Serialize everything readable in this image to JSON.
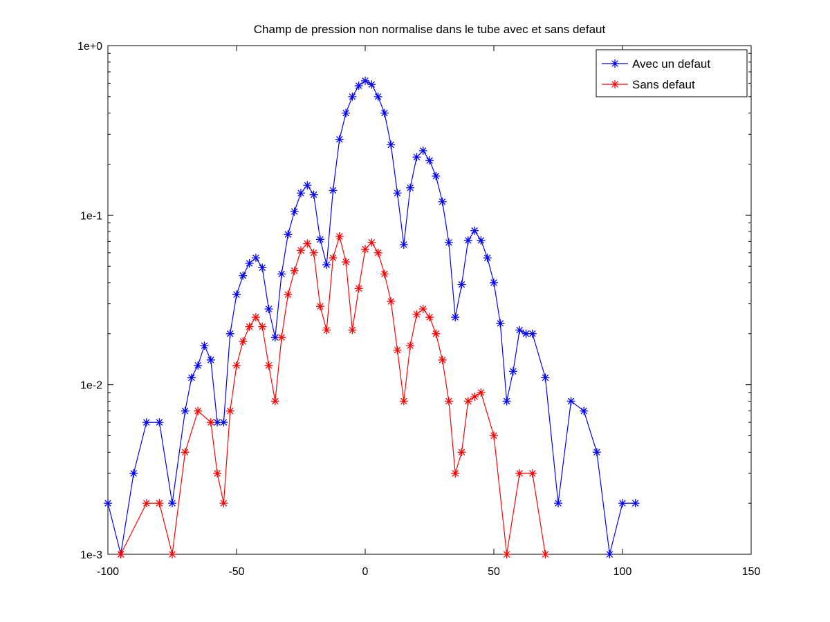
{
  "chart_data": {
    "type": "line",
    "title": "Champ de pression non normalise dans le tube avec et sans defaut",
    "xlabel": "",
    "ylabel": "",
    "xlim": [
      -100,
      150
    ],
    "ylim": [
      0.001,
      1
    ],
    "yscale": "log",
    "grid": false,
    "legend_position": "top-right",
    "x_ticks": [
      -100,
      -50,
      0,
      50,
      100,
      150
    ],
    "x_tick_labels": [
      "-100",
      "-50",
      "0",
      "50",
      "100",
      "150"
    ],
    "y_ticks": [
      0.001,
      0.01,
      0.1,
      1
    ],
    "y_tick_labels": [
      "1e-3",
      "1e-2",
      "1e-1",
      "1e+0"
    ],
    "marker": "asterisk",
    "series": [
      {
        "name": "Avec un defaut",
        "color": "#0000ff",
        "x": [
          -100,
          -95,
          -90,
          -85,
          -80,
          -75,
          -70,
          -67.5,
          -65,
          -62.5,
          -60,
          -57.5,
          -55,
          -52.5,
          -50,
          -47.5,
          -45,
          -42.5,
          -40,
          -37.5,
          -35,
          -32.5,
          -30,
          -27.5,
          -25,
          -22.5,
          -20,
          -17.5,
          -15,
          -12.5,
          -10,
          -7.5,
          -5,
          -2.5,
          0,
          2.5,
          5,
          7.5,
          10,
          12.5,
          15,
          17.5,
          20,
          22.5,
          25,
          27.5,
          30,
          32.5,
          35,
          37.5,
          40,
          42.5,
          45,
          47.5,
          50,
          52.5,
          55,
          57.5,
          60,
          62.5,
          65,
          70,
          75,
          80,
          85,
          90,
          95,
          100,
          105
        ],
        "y": [
          0.002,
          0.001,
          0.003,
          0.006,
          0.006,
          0.002,
          0.007,
          0.011,
          0.013,
          0.017,
          0.014,
          0.006,
          0.006,
          0.02,
          0.034,
          0.044,
          0.052,
          0.056,
          0.049,
          0.028,
          0.019,
          0.045,
          0.077,
          0.105,
          0.135,
          0.15,
          0.132,
          0.072,
          0.051,
          0.14,
          0.28,
          0.4,
          0.5,
          0.58,
          0.62,
          0.59,
          0.5,
          0.4,
          0.26,
          0.135,
          0.067,
          0.145,
          0.22,
          0.24,
          0.21,
          0.17,
          0.12,
          0.069,
          0.025,
          0.039,
          0.071,
          0.081,
          0.071,
          0.056,
          0.04,
          0.023,
          0.008,
          0.012,
          0.021,
          0.02,
          0.02,
          0.011,
          0.002,
          0.008,
          0.007,
          0.004,
          0.001,
          0.002,
          0.002
        ]
      },
      {
        "name": "Sans defaut",
        "color": "#ff0000",
        "x": [
          -95,
          -85,
          -80,
          -75,
          -70,
          -65,
          -60,
          -57.5,
          -55,
          -52.5,
          -50,
          -47.5,
          -45,
          -42.5,
          -40,
          -37.5,
          -35,
          -32.5,
          -30,
          -27.5,
          -25,
          -22.5,
          -20,
          -17.5,
          -15,
          -12.5,
          -10,
          -7.5,
          -5,
          -2.5,
          0,
          2.5,
          5,
          7.5,
          10,
          12.5,
          15,
          17.5,
          20,
          22.5,
          25,
          27.5,
          30,
          32.5,
          35,
          37.5,
          40,
          42.5,
          45,
          50,
          55,
          60,
          65,
          70
        ],
        "y": [
          0.001,
          0.002,
          0.002,
          0.001,
          0.004,
          0.007,
          0.006,
          0.003,
          0.002,
          0.007,
          0.013,
          0.018,
          0.022,
          0.025,
          0.022,
          0.013,
          0.008,
          0.019,
          0.034,
          0.047,
          0.062,
          0.068,
          0.06,
          0.029,
          0.021,
          0.056,
          0.075,
          0.053,
          0.021,
          0.037,
          0.063,
          0.069,
          0.06,
          0.045,
          0.031,
          0.016,
          0.008,
          0.017,
          0.026,
          0.028,
          0.025,
          0.02,
          0.014,
          0.008,
          0.003,
          0.004,
          0.008,
          0.0085,
          0.009,
          0.005,
          0.001,
          0.003,
          0.003,
          0.001
        ]
      }
    ]
  }
}
